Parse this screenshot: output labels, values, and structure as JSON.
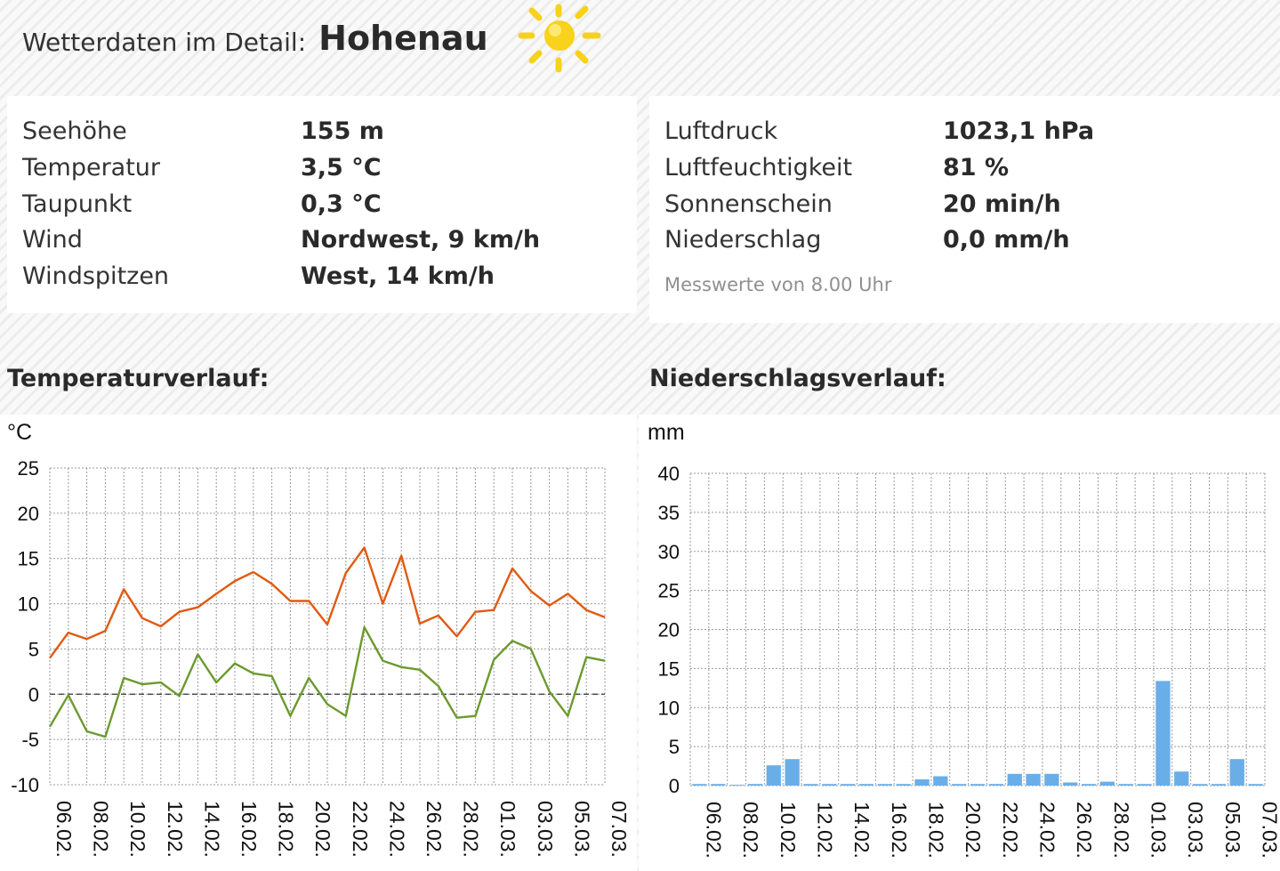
{
  "header": {
    "lead": "Wetterdaten im Detail:",
    "city": "Hohenau",
    "weather_icon": "sun-icon"
  },
  "left_panel": [
    {
      "label": "Seehöhe",
      "value": "155 m"
    },
    {
      "label": "Temperatur",
      "value": "3,5 °C"
    },
    {
      "label": "Taupunkt",
      "value": "0,3 °C"
    },
    {
      "label": "Wind",
      "value": "Nordwest, 9 km/h"
    },
    {
      "label": "Windspitzen",
      "value": "West, 14 km/h"
    }
  ],
  "right_panel": [
    {
      "label": "Luftdruck",
      "value": "1023,1 hPa"
    },
    {
      "label": "Luftfeuchtigkeit",
      "value": "81 %"
    },
    {
      "label": "Sonnenschein",
      "value": "20 min/h"
    },
    {
      "label": "Niederschlag",
      "value": "0,0 mm/h"
    }
  ],
  "note": "Messwerte von 8.00 Uhr",
  "colors": {
    "max_line": "#e05a12",
    "min_line": "#6b9a2e",
    "bar": "#6aaee8",
    "grid": "#9a9a9a"
  },
  "chart_data": [
    {
      "type": "line",
      "section_title": "Temperaturverlauf:",
      "unit": "°C",
      "ylim": [
        -10,
        25
      ],
      "yticks": [
        25,
        20,
        15,
        10,
        5,
        0,
        -5,
        -10
      ],
      "grid": true,
      "zero_line": "dashed",
      "x": [
        "06.02.",
        "07.02.",
        "08.02.",
        "09.02.",
        "10.02.",
        "11.02.",
        "12.02.",
        "13.02.",
        "14.02.",
        "15.02.",
        "16.02.",
        "17.02.",
        "18.02.",
        "19.02.",
        "20.02.",
        "21.02.",
        "22.02.",
        "23.02.",
        "24.02.",
        "25.02.",
        "26.02.",
        "27.02.",
        "28.02.",
        "29.02.",
        "01.03.",
        "02.03.",
        "03.03.",
        "04.03.",
        "05.03.",
        "06.03.",
        "07.03."
      ],
      "x_tick_labels": [
        "06.02.",
        "08.02.",
        "10.02.",
        "12.02.",
        "14.02.",
        "16.02.",
        "18.02.",
        "20.02.",
        "22.02.",
        "24.02.",
        "26.02.",
        "28.02.",
        "01.03.",
        "03.03.",
        "05.03.",
        "07.03."
      ],
      "series": [
        {
          "values": [
            4.0,
            6.8,
            6.1,
            7.0,
            11.6,
            8.4,
            7.5,
            9.1,
            9.6,
            11.1,
            12.5,
            13.5,
            12.2,
            10.3,
            10.3,
            7.7,
            13.4,
            16.2,
            10.0,
            15.3,
            7.8,
            8.7,
            6.4,
            9.1,
            9.3,
            13.9,
            11.4,
            9.8,
            11.1,
            9.3,
            8.5
          ]
        },
        {
          "values": [
            -3.6,
            -0.1,
            -4.1,
            -4.7,
            1.8,
            1.1,
            1.3,
            -0.2,
            4.4,
            1.3,
            3.4,
            2.3,
            2.0,
            -2.4,
            1.8,
            -1.1,
            -2.4,
            7.4,
            3.7,
            3.0,
            2.7,
            0.9,
            -2.6,
            -2.4,
            3.8,
            5.9,
            5.0,
            0.3,
            -2.4,
            4.1,
            3.7
          ]
        }
      ]
    },
    {
      "type": "bar",
      "section_title": "Niederschlagsverlauf:",
      "unit": "mm",
      "ylim": [
        0,
        40
      ],
      "yticks": [
        40,
        35,
        30,
        25,
        20,
        15,
        10,
        5,
        0
      ],
      "grid": true,
      "categories": [
        "06.02.",
        "07.02.",
        "08.02.",
        "09.02.",
        "10.02.",
        "11.02.",
        "12.02.",
        "13.02.",
        "14.02.",
        "15.02.",
        "16.02.",
        "17.02.",
        "18.02.",
        "19.02.",
        "20.02.",
        "21.02.",
        "22.02.",
        "23.02.",
        "24.02.",
        "25.02.",
        "26.02.",
        "27.02.",
        "28.02.",
        "29.02.",
        "01.03.",
        "02.03.",
        "03.03.",
        "04.03.",
        "05.03.",
        "06.03.",
        "07.03."
      ],
      "x_tick_labels": [
        "06.02.",
        "08.02.",
        "10.02.",
        "12.02.",
        "14.02.",
        "16.02.",
        "18.02.",
        "20.02.",
        "22.02.",
        "24.02.",
        "26.02.",
        "28.02.",
        "01.03.",
        "03.03.",
        "05.03.",
        "07.03."
      ],
      "values": [
        0.2,
        0.2,
        0.1,
        0.2,
        2.6,
        3.4,
        0.2,
        0.2,
        0.2,
        0.2,
        0.2,
        0.2,
        0.8,
        1.2,
        0.2,
        0.2,
        0.2,
        1.5,
        1.5,
        1.5,
        0.4,
        0.2,
        0.5,
        0.2,
        0.2,
        13.4,
        1.8,
        0.2,
        0.2,
        3.4,
        0.2
      ]
    }
  ]
}
